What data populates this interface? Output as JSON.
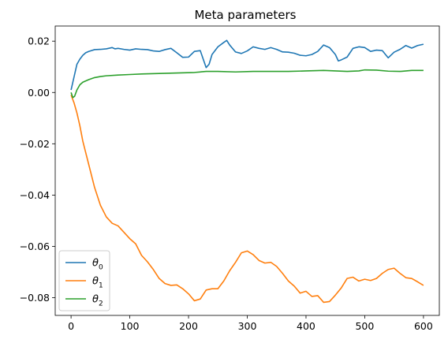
{
  "chart_data": {
    "type": "line",
    "title": "Meta parameters",
    "xlabel": "",
    "ylabel": "",
    "xlim": [
      -27,
      627
    ],
    "ylim": [
      -0.0869,
      0.0259
    ],
    "x_ticks": [
      0,
      100,
      200,
      300,
      400,
      500,
      600
    ],
    "x_tick_labels": [
      "0",
      "100",
      "200",
      "300",
      "400",
      "500",
      "600"
    ],
    "y_ticks": [
      0.02,
      0.0,
      -0.02,
      -0.04,
      -0.06,
      -0.08
    ],
    "y_tick_labels": [
      "0.02",
      "0.00",
      "−0.02",
      "−0.04",
      "−0.06",
      "−0.08"
    ],
    "grid": false,
    "legend_position": "lower-left",
    "series": [
      {
        "name": "θ₀",
        "label_base": "θ",
        "label_sub": "0",
        "color": "#1f77b4",
        "x": [
          0,
          5,
          10,
          15,
          20,
          25,
          30,
          40,
          50,
          60,
          70,
          75,
          80,
          90,
          100,
          110,
          120,
          130,
          140,
          150,
          160,
          170,
          180,
          190,
          200,
          210,
          220,
          225,
          230,
          235,
          240,
          250,
          260,
          265,
          270,
          280,
          290,
          300,
          310,
          320,
          330,
          340,
          350,
          360,
          370,
          380,
          390,
          400,
          410,
          420,
          430,
          440,
          450,
          455,
          460,
          470,
          480,
          490,
          500,
          510,
          520,
          530,
          540,
          550,
          560,
          570,
          580,
          590,
          600
        ],
        "y": [
          0.001,
          0.006,
          0.011,
          0.013,
          0.0145,
          0.0155,
          0.016,
          0.0167,
          0.0168,
          0.017,
          0.0175,
          0.017,
          0.0172,
          0.0168,
          0.0165,
          0.017,
          0.0168,
          0.0167,
          0.0162,
          0.016,
          0.0167,
          0.0172,
          0.0155,
          0.0137,
          0.0138,
          0.016,
          0.0163,
          0.013,
          0.0097,
          0.011,
          0.0148,
          0.0178,
          0.0195,
          0.0203,
          0.0185,
          0.0158,
          0.0152,
          0.0162,
          0.0178,
          0.0172,
          0.0168,
          0.0175,
          0.0168,
          0.0158,
          0.0157,
          0.0153,
          0.0145,
          0.0143,
          0.0148,
          0.016,
          0.0185,
          0.0175,
          0.0148,
          0.0123,
          0.0127,
          0.0138,
          0.0172,
          0.0178,
          0.0175,
          0.016,
          0.0165,
          0.0163,
          0.0135,
          0.0157,
          0.0168,
          0.0183,
          0.0173,
          0.0183,
          0.0188
        ]
      },
      {
        "name": "θ₁",
        "label_base": "θ",
        "label_sub": "1",
        "color": "#ff7f0e",
        "x": [
          0,
          5,
          10,
          15,
          20,
          30,
          40,
          50,
          60,
          70,
          80,
          90,
          100,
          110,
          120,
          130,
          140,
          150,
          160,
          170,
          180,
          190,
          200,
          210,
          220,
          230,
          240,
          250,
          260,
          270,
          280,
          290,
          300,
          310,
          320,
          330,
          340,
          350,
          360,
          370,
          380,
          390,
          400,
          410,
          420,
          430,
          440,
          450,
          460,
          470,
          480,
          490,
          500,
          510,
          520,
          530,
          540,
          550,
          560,
          570,
          580,
          590,
          600
        ],
        "y": [
          -0.001,
          -0.004,
          -0.008,
          -0.013,
          -0.019,
          -0.028,
          -0.037,
          -0.044,
          -0.0485,
          -0.051,
          -0.052,
          -0.0545,
          -0.057,
          -0.059,
          -0.0635,
          -0.066,
          -0.069,
          -0.0725,
          -0.0745,
          -0.0752,
          -0.075,
          -0.0765,
          -0.0785,
          -0.0812,
          -0.0805,
          -0.077,
          -0.0765,
          -0.0765,
          -0.0735,
          -0.0695,
          -0.0662,
          -0.0625,
          -0.0618,
          -0.0632,
          -0.0655,
          -0.0665,
          -0.0662,
          -0.0678,
          -0.0705,
          -0.0735,
          -0.0755,
          -0.0782,
          -0.0775,
          -0.0795,
          -0.0792,
          -0.0818,
          -0.0815,
          -0.079,
          -0.0762,
          -0.0725,
          -0.072,
          -0.0735,
          -0.0728,
          -0.0733,
          -0.0725,
          -0.0705,
          -0.069,
          -0.0685,
          -0.0705,
          -0.0722,
          -0.0725,
          -0.0738,
          -0.0752
        ]
      },
      {
        "name": "θ₂",
        "label_base": "θ",
        "label_sub": "2",
        "color": "#2ca02c",
        "x": [
          0,
          3,
          6,
          10,
          15,
          20,
          30,
          40,
          50,
          60,
          80,
          100,
          120,
          150,
          180,
          210,
          230,
          250,
          280,
          310,
          340,
          370,
          400,
          430,
          450,
          470,
          490,
          500,
          520,
          540,
          560,
          580,
          600
        ],
        "y": [
          0.0,
          -0.002,
          -0.0015,
          0.001,
          0.003,
          0.004,
          0.005,
          0.0058,
          0.0062,
          0.0065,
          0.0068,
          0.007,
          0.0072,
          0.0074,
          0.0076,
          0.0078,
          0.0082,
          0.0082,
          0.008,
          0.0082,
          0.0082,
          0.0082,
          0.0084,
          0.0086,
          0.0084,
          0.0082,
          0.0084,
          0.0088,
          0.0087,
          0.0083,
          0.0082,
          0.0086,
          0.0086
        ]
      }
    ]
  }
}
